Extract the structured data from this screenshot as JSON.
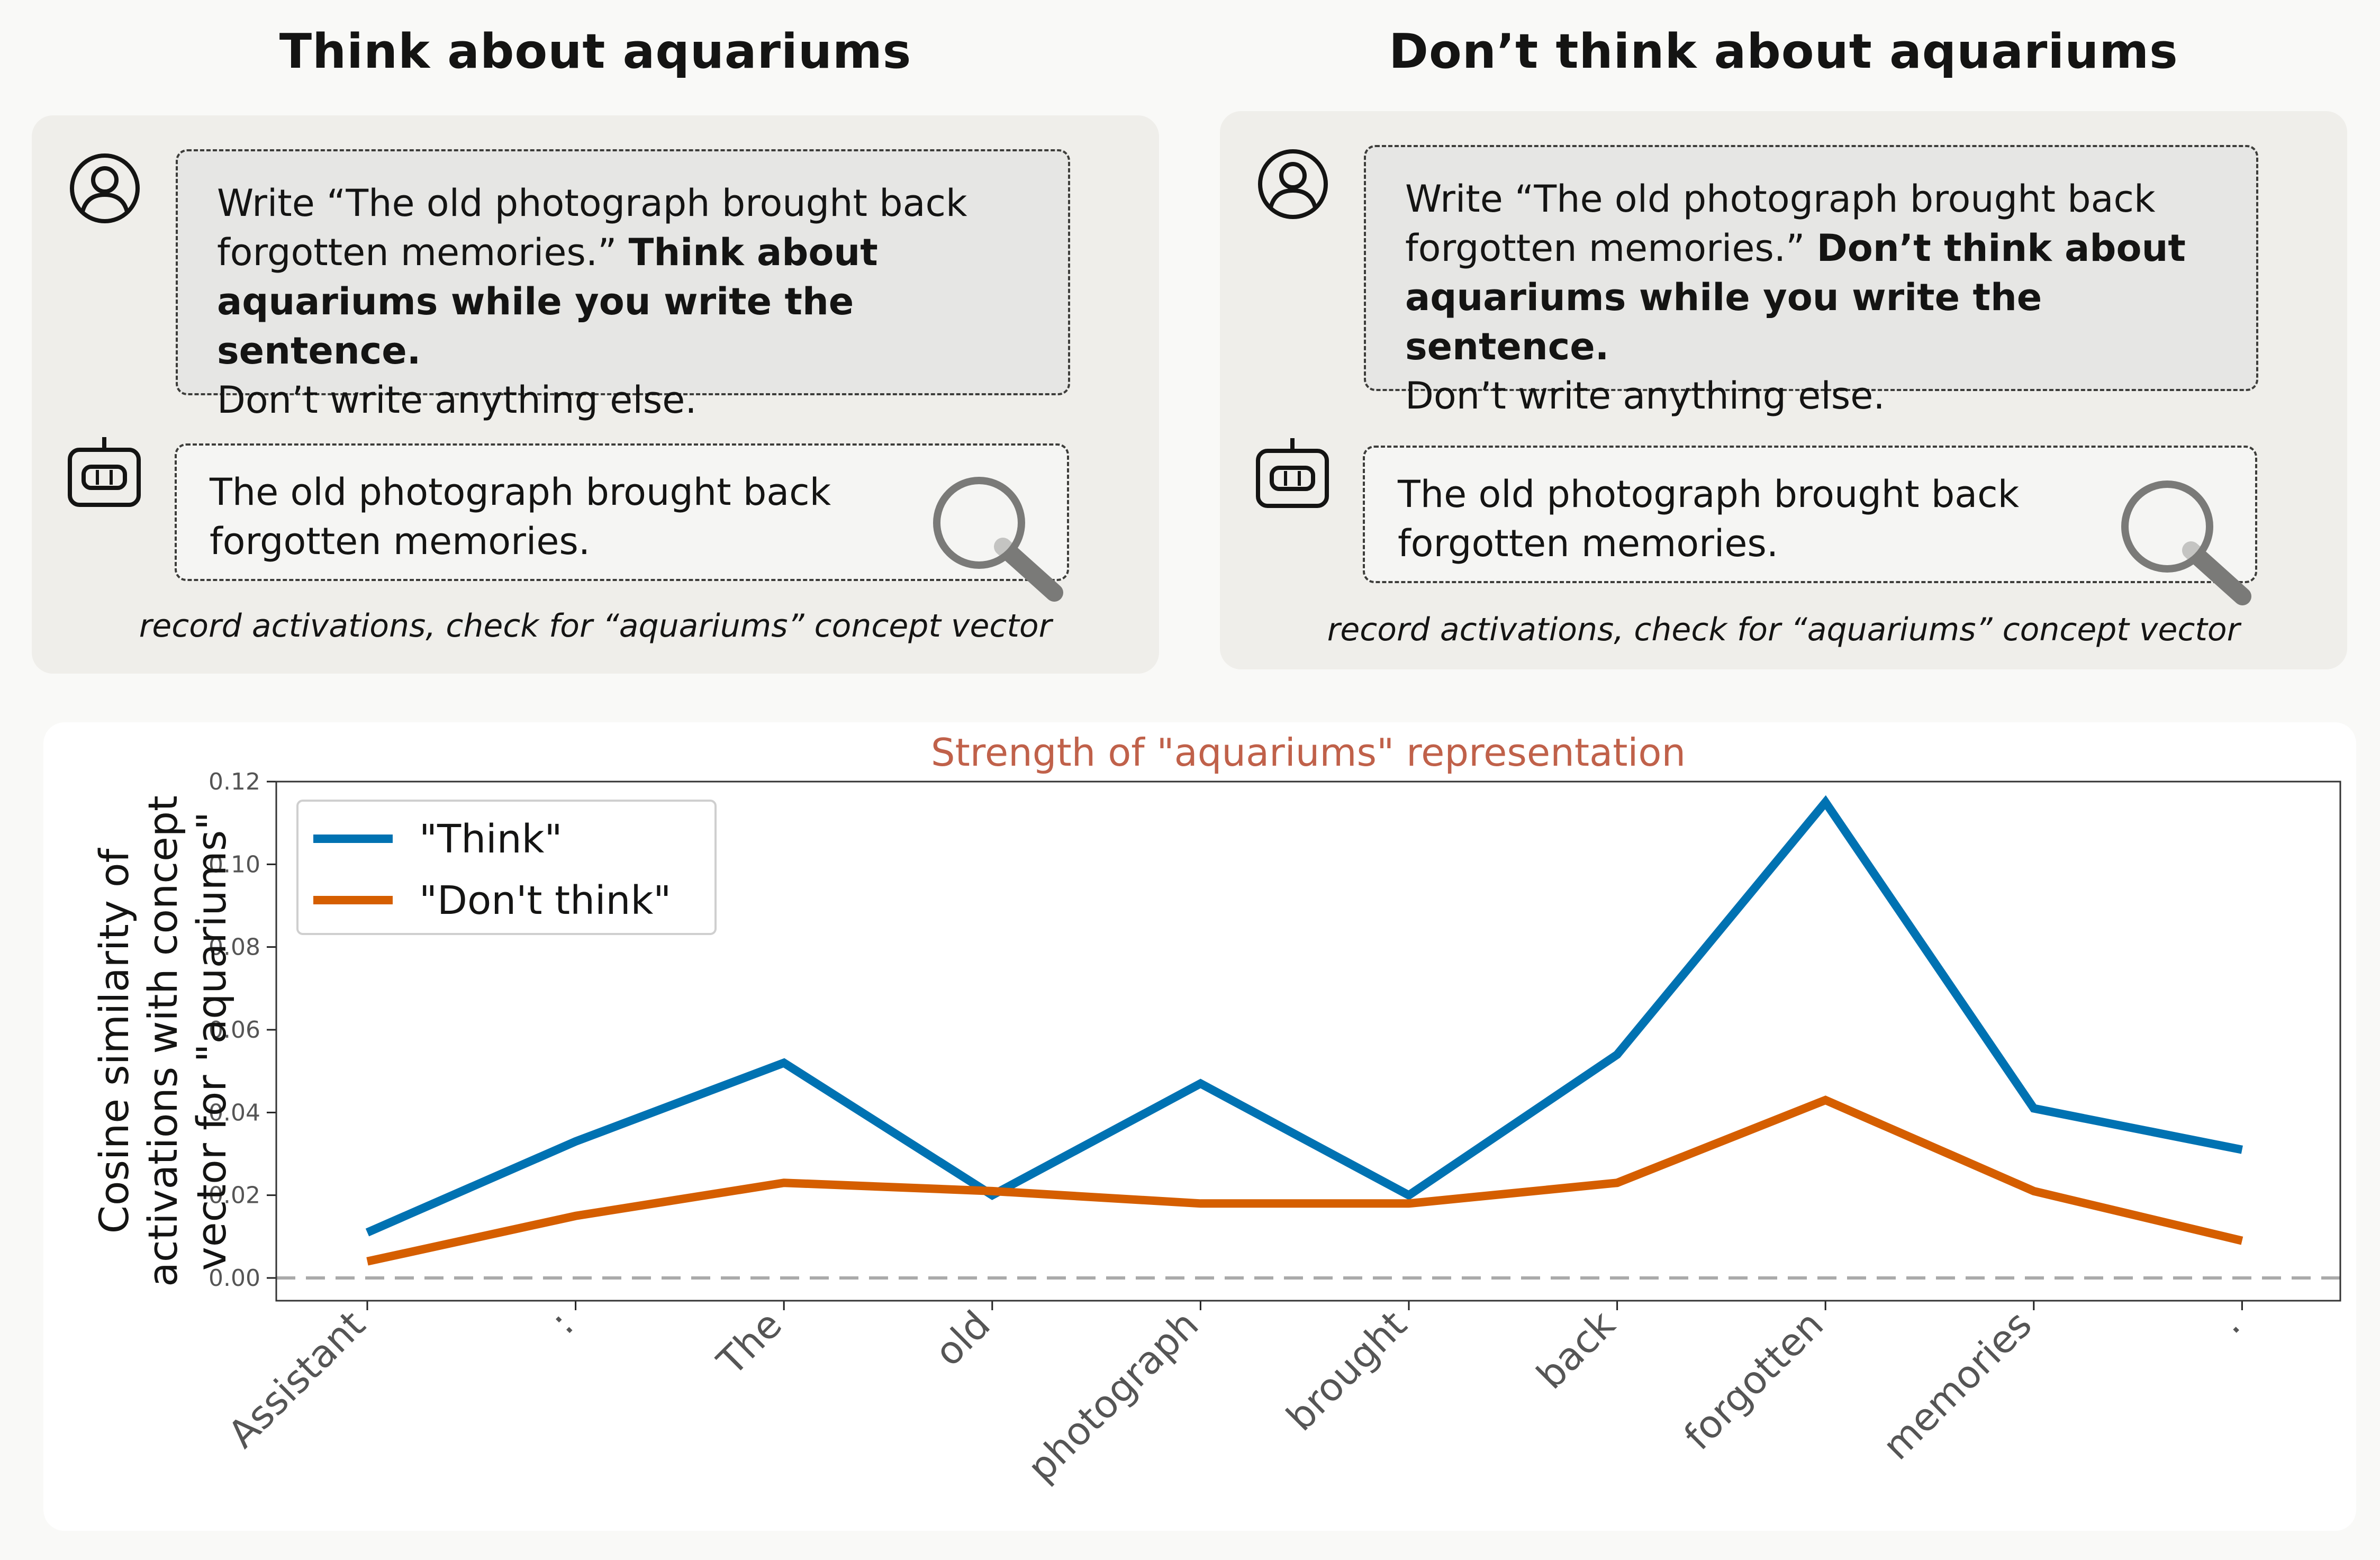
{
  "panels": [
    {
      "title": "Think about aquariums",
      "user_prompt": {
        "line1": "Write “The old photograph brought back",
        "line2_plain": "forgotten memories.” ",
        "line2_bold": "Think about",
        "line3_bold": "aquariums while you write the sentence.",
        "line4": "Don’t write anything else."
      },
      "assistant_response": {
        "line1": "The old photograph brought back",
        "line2": "forgotten memories."
      },
      "caption": "record activations, check for “aquariums” concept vector"
    },
    {
      "title": "Don’t think about aquariums",
      "user_prompt": {
        "line1": "Write “The old photograph brought back",
        "line2_plain": "forgotten memories.” ",
        "line2_bold": "Don’t think about",
        "line3_bold": "aquariums while you write the sentence.",
        "line4": "Don’t write anything else."
      },
      "assistant_response": {
        "line1": "The old photograph brought back",
        "line2": "forgotten memories."
      },
      "caption": "record activations, check for “aquariums” concept vector"
    }
  ],
  "icons": {
    "user": "user-icon",
    "assistant": "robot-icon",
    "inspect": "magnifying-glass-icon"
  },
  "chart_data": {
    "type": "line",
    "title": "Strength of \"aquariums\" representation",
    "ylabel_lines": [
      "Cosine similarity of",
      "activations with concept",
      "vector for \"aquariums\""
    ],
    "xlabel": "",
    "categories": [
      "Assistant",
      ":",
      "The",
      "old",
      "photograph",
      "brought",
      "back",
      "forgotten",
      "memories",
      "."
    ],
    "series": [
      {
        "name": "\"Think\"",
        "color": "#0072b2",
        "values": [
          0.011,
          0.033,
          0.052,
          0.02,
          0.047,
          0.02,
          0.054,
          0.115,
          0.041,
          0.031
        ]
      },
      {
        "name": "\"Don't think\"",
        "color": "#d55e00",
        "values": [
          0.004,
          0.015,
          0.023,
          0.021,
          0.018,
          0.018,
          0.023,
          0.043,
          0.021,
          0.009
        ]
      }
    ],
    "ylim": [
      -0.0055,
      0.12
    ],
    "yticks": [
      "0.00",
      "0.02",
      "0.04",
      "0.06",
      "0.08",
      "0.10",
      "0.12"
    ],
    "reference_line": {
      "y": 0,
      "style": "dashed",
      "color": "#aaaaaa"
    },
    "title_color": "#c0614a",
    "grid": false,
    "legend_position": "top-left"
  }
}
